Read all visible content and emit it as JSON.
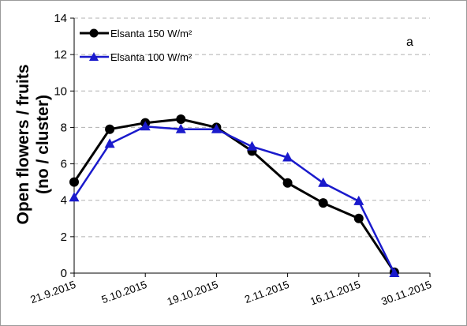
{
  "chart_data": {
    "type": "line",
    "panel_label": "a",
    "ylabel_lines": [
      "Open flowers / fruits",
      "(no / cluster)"
    ],
    "xlabel": "",
    "ylim": [
      0,
      14
    ],
    "y_ticks": [
      0,
      2,
      4,
      6,
      8,
      10,
      12,
      14
    ],
    "x_ticks": [
      "21.9.2015",
      "5.10.2015",
      "19.10.2015",
      "2.11.2015",
      "16.11.2015",
      "30.11.2015"
    ],
    "grid": "horizontal dashed",
    "legend_position": "top-left",
    "x": [
      "21.9.2015",
      "28.9.2015",
      "5.10.2015",
      "12.10.2015",
      "19.10.2015",
      "26.10.2015",
      "2.11.2015",
      "9.11.2015",
      "16.11.2015",
      "23.11.2015"
    ],
    "series": [
      {
        "name": "Elsanta 150 W/m²",
        "color": "#000000",
        "marker": "circle",
        "values": [
          5.0,
          7.9,
          8.25,
          8.45,
          8.0,
          6.7,
          4.95,
          3.85,
          3.0,
          0.05
        ]
      },
      {
        "name": "Elsanta 100 W/m²",
        "color": "#1a1acc",
        "marker": "triangle",
        "values": [
          4.15,
          7.1,
          8.05,
          7.9,
          7.9,
          6.95,
          6.35,
          4.95,
          3.95,
          0.0
        ]
      }
    ]
  }
}
